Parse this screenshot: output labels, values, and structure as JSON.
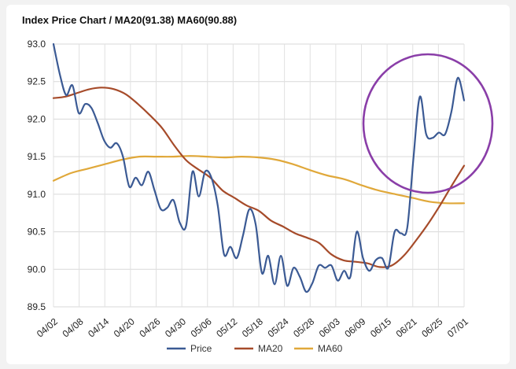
{
  "chart_data": {
    "type": "line",
    "title": "Index Price Chart / MA20(91.38) MA60(90.88)",
    "xlabel": "",
    "ylabel": "",
    "ylim": [
      89.5,
      93.0
    ],
    "yticks": [
      "93.0",
      "92.5",
      "92.0",
      "91.5",
      "91.0",
      "90.5",
      "90.0",
      "89.5"
    ],
    "x_tick_labels": [
      "04/02",
      "04/08",
      "04/14",
      "04/20",
      "04/26",
      "04/30",
      "05/06",
      "05/12",
      "05/18",
      "05/24",
      "05/28",
      "06/03",
      "06/09",
      "06/15",
      "06/21",
      "06/25",
      "07/01"
    ],
    "grid": true,
    "legend_position": "bottom",
    "x_count": 66,
    "series": [
      {
        "name": "Price",
        "color": "#3b5a94",
        "points": [
          [
            0,
            93.0
          ],
          [
            1,
            92.6
          ],
          [
            2,
            92.32
          ],
          [
            3,
            92.45
          ],
          [
            4,
            92.08
          ],
          [
            5,
            92.2
          ],
          [
            6,
            92.15
          ],
          [
            7,
            91.95
          ],
          [
            8,
            91.72
          ],
          [
            9,
            91.62
          ],
          [
            10,
            91.68
          ],
          [
            11,
            91.5
          ],
          [
            12,
            91.1
          ],
          [
            13,
            91.22
          ],
          [
            14,
            91.12
          ],
          [
            15,
            91.3
          ],
          [
            16,
            91.05
          ],
          [
            17,
            90.8
          ],
          [
            18,
            90.82
          ],
          [
            19,
            90.92
          ],
          [
            20,
            90.62
          ],
          [
            21,
            90.58
          ],
          [
            22,
            91.3
          ],
          [
            23,
            90.97
          ],
          [
            24,
            91.3
          ],
          [
            25,
            91.22
          ],
          [
            26,
            90.85
          ],
          [
            27,
            90.2
          ],
          [
            28,
            90.3
          ],
          [
            29,
            90.15
          ],
          [
            30,
            90.45
          ],
          [
            31,
            90.8
          ],
          [
            32,
            90.6
          ],
          [
            33,
            89.95
          ],
          [
            34,
            90.18
          ],
          [
            35,
            89.8
          ],
          [
            36,
            90.18
          ],
          [
            37,
            89.78
          ],
          [
            38,
            90.02
          ],
          [
            39,
            89.9
          ],
          [
            40,
            89.7
          ],
          [
            41,
            89.82
          ],
          [
            42,
            90.05
          ],
          [
            43,
            90.02
          ],
          [
            44,
            90.05
          ],
          [
            45,
            89.85
          ],
          [
            46,
            89.98
          ],
          [
            47,
            89.9
          ],
          [
            48,
            90.5
          ],
          [
            49,
            90.15
          ],
          [
            50,
            89.98
          ],
          [
            51,
            90.12
          ],
          [
            52,
            90.15
          ],
          [
            53,
            90.02
          ],
          [
            54,
            90.5
          ],
          [
            55,
            90.48
          ],
          [
            56,
            90.55
          ],
          [
            57,
            91.5
          ],
          [
            58,
            92.3
          ],
          [
            59,
            91.8
          ],
          [
            60,
            91.75
          ],
          [
            61,
            91.82
          ],
          [
            62,
            91.8
          ],
          [
            63,
            92.1
          ],
          [
            64,
            92.55
          ],
          [
            65,
            92.25
          ]
        ]
      },
      {
        "name": "MA20",
        "color": "#a64b2a",
        "points": [
          [
            0,
            92.28
          ],
          [
            2,
            92.3
          ],
          [
            4,
            92.35
          ],
          [
            6,
            92.4
          ],
          [
            8,
            92.42
          ],
          [
            10,
            92.4
          ],
          [
            12,
            92.33
          ],
          [
            14,
            92.2
          ],
          [
            16,
            92.05
          ],
          [
            18,
            91.88
          ],
          [
            20,
            91.65
          ],
          [
            22,
            91.45
          ],
          [
            24,
            91.33
          ],
          [
            26,
            91.22
          ],
          [
            28,
            91.05
          ],
          [
            30,
            90.95
          ],
          [
            32,
            90.85
          ],
          [
            34,
            90.78
          ],
          [
            36,
            90.65
          ],
          [
            38,
            90.57
          ],
          [
            40,
            90.48
          ],
          [
            42,
            90.42
          ],
          [
            44,
            90.35
          ],
          [
            46,
            90.2
          ],
          [
            48,
            90.12
          ],
          [
            50,
            90.1
          ],
          [
            52,
            90.08
          ],
          [
            54,
            90.03
          ],
          [
            56,
            90.05
          ],
          [
            58,
            90.18
          ],
          [
            60,
            90.38
          ],
          [
            62,
            90.6
          ],
          [
            64,
            90.85
          ],
          [
            66,
            91.12
          ],
          [
            68,
            91.38
          ]
        ]
      },
      {
        "name": "MA60",
        "color": "#e0a83a",
        "points": [
          [
            0,
            91.18
          ],
          [
            3,
            91.28
          ],
          [
            6,
            91.34
          ],
          [
            9,
            91.4
          ],
          [
            12,
            91.46
          ],
          [
            15,
            91.5
          ],
          [
            18,
            91.5
          ],
          [
            21,
            91.5
          ],
          [
            24,
            91.51
          ],
          [
            27,
            91.5
          ],
          [
            30,
            91.49
          ],
          [
            33,
            91.5
          ],
          [
            36,
            91.49
          ],
          [
            39,
            91.46
          ],
          [
            42,
            91.4
          ],
          [
            45,
            91.32
          ],
          [
            48,
            91.25
          ],
          [
            51,
            91.2
          ],
          [
            54,
            91.12
          ],
          [
            57,
            91.05
          ],
          [
            60,
            91.0
          ],
          [
            63,
            90.95
          ],
          [
            66,
            90.9
          ],
          [
            69,
            90.88
          ],
          [
            72,
            90.88
          ]
        ]
      }
    ]
  }
}
